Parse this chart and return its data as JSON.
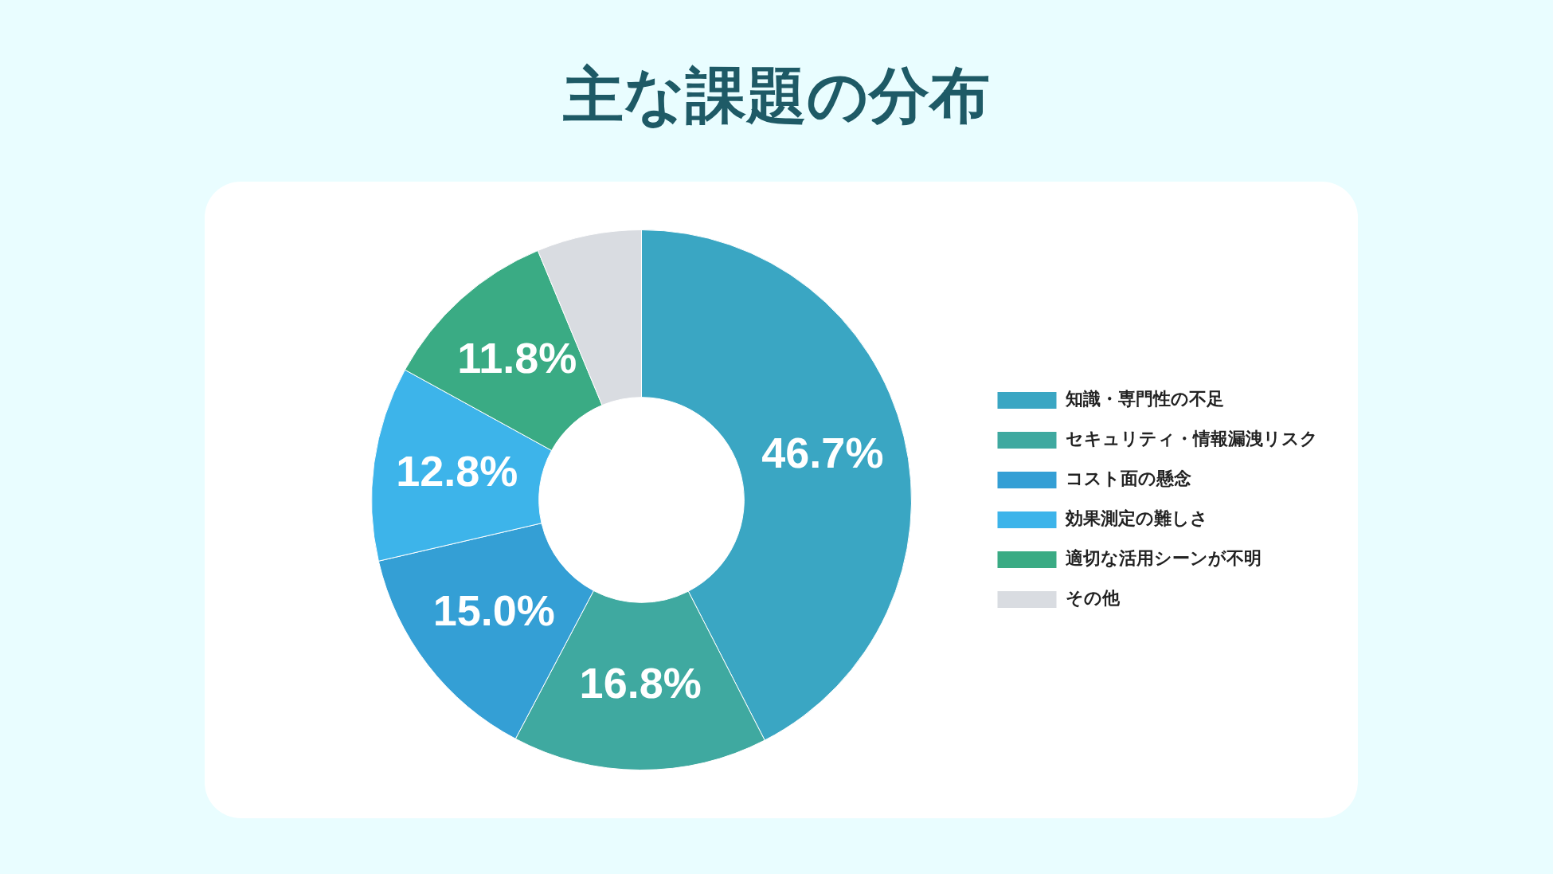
{
  "chart_data": {
    "type": "donut",
    "title": "主な課題の分布",
    "categories": [
      "知識・専門性の不足",
      "セキュリティ・情報漏洩リスク",
      "コスト面の懸念",
      "効果測定の難しさ",
      "適切な活用シーンが不明",
      "その他"
    ],
    "values": [
      46.7,
      16.8,
      15.0,
      12.8,
      11.8,
      6.9
    ],
    "colors": [
      "#3aa6c3",
      "#3fa9a0",
      "#349fd5",
      "#3db4ea",
      "#3aab84",
      "#d9dce1"
    ],
    "value_labels": [
      "46.7%",
      "16.8%",
      "15.0%",
      "12.8%",
      "11.8%",
      null
    ],
    "legend": "right"
  }
}
